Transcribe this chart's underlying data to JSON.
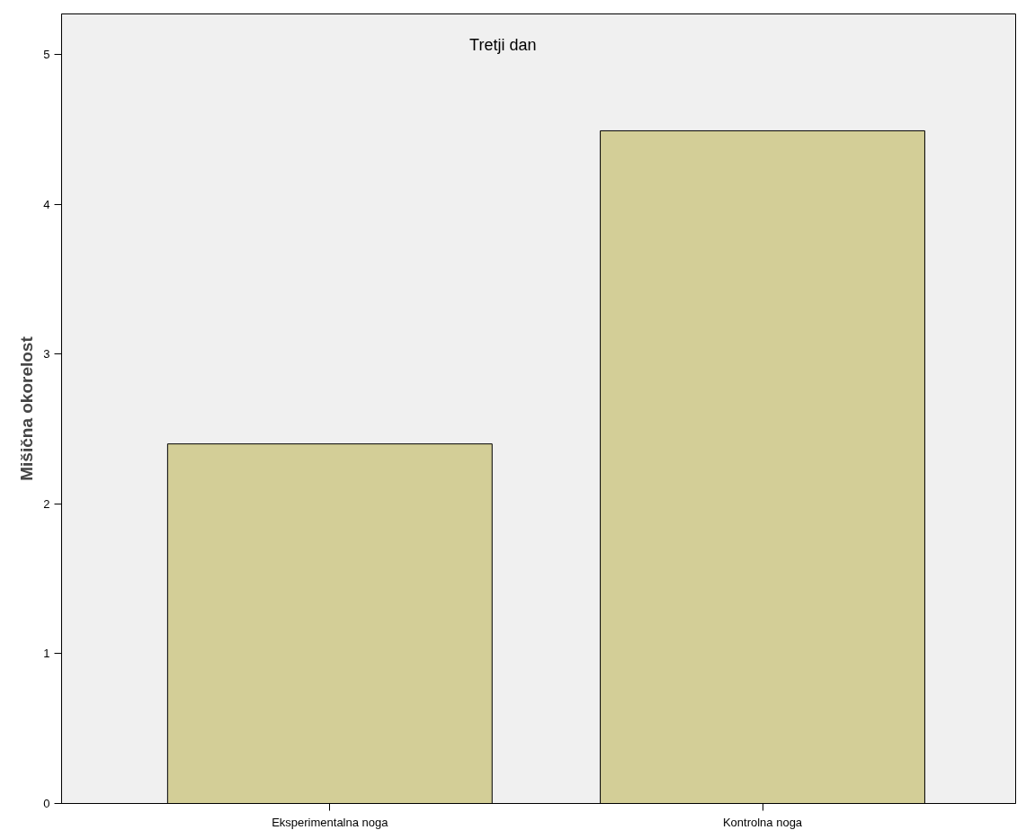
{
  "chart_data": {
    "type": "bar",
    "title": "Tretji dan",
    "ylabel": "Mišična okorelost",
    "categories": [
      "Eksperimentalna noga",
      "Kontrolna noga"
    ],
    "values": [
      2.4,
      4.49
    ],
    "color": "#d3ce97",
    "ylim": [
      0,
      5.27
    ],
    "yticks": [
      0,
      1,
      2,
      3,
      4,
      5
    ],
    "grid": false
  }
}
